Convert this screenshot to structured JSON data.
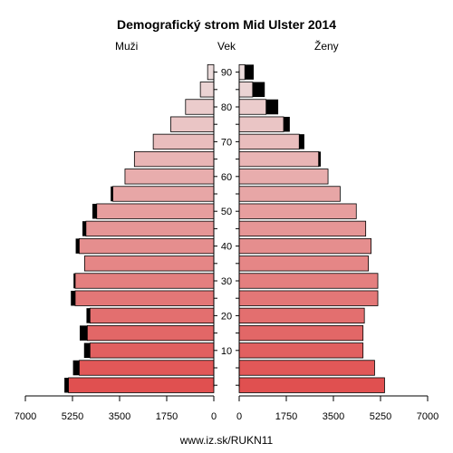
{
  "chart_data": {
    "type": "bar",
    "title": "Demografický strom Mid Ulster 2014",
    "label_left": "Muži",
    "label_center": "Vek",
    "label_right": "Ženy",
    "footer": "www.iz.sk/RUKN11",
    "xlim": [
      0,
      7000
    ],
    "x_ticks": [
      7000,
      5250,
      3500,
      1750,
      0
    ],
    "x_tick_labels_left": [
      "7000",
      "5250",
      "3500",
      "1750",
      "0"
    ],
    "x_tick_labels_right": [
      "0",
      "1750",
      "3500",
      "5250",
      "7000"
    ],
    "age_ticks": [
      0,
      5,
      10,
      15,
      20,
      25,
      30,
      35,
      40,
      45,
      50,
      55,
      60,
      65,
      70,
      75,
      80,
      85,
      90
    ],
    "age_tick_labels": [
      "10",
      "20",
      "30",
      "40",
      "50",
      "60",
      "70",
      "80",
      "90"
    ],
    "age_groups": [
      "0-4",
      "5-9",
      "10-14",
      "15-19",
      "20-24",
      "25-29",
      "30-34",
      "35-39",
      "40-44",
      "45-49",
      "50-54",
      "55-59",
      "60-64",
      "65-69",
      "70-74",
      "75-79",
      "80-84",
      "85-89",
      "90+"
    ],
    "series": [
      {
        "name": "Muži",
        "values": [
          5400,
          5000,
          4600,
          4700,
          4600,
          5150,
          5150,
          4800,
          5000,
          4750,
          4350,
          3750,
          3300,
          2950,
          2250,
          1600,
          1050,
          500,
          230
        ],
        "overflow": [
          150,
          230,
          220,
          280,
          130,
          160,
          60,
          0,
          130,
          130,
          160,
          80,
          0,
          0,
          0,
          0,
          0,
          0,
          0
        ]
      },
      {
        "name": "Ženy",
        "values": [
          5400,
          5030,
          4600,
          4600,
          4650,
          5150,
          5150,
          4800,
          4900,
          4700,
          4350,
          3750,
          3300,
          2950,
          2230,
          1650,
          1000,
          500,
          210
        ],
        "overflow": [
          0,
          0,
          0,
          0,
          0,
          0,
          0,
          0,
          0,
          0,
          0,
          0,
          0,
          80,
          190,
          230,
          450,
          450,
          330
        ]
      }
    ],
    "colors": {
      "overflow": "#000000",
      "bar_outline": "#000000",
      "young": "#e05050",
      "old": "#ecdcdc"
    }
  }
}
